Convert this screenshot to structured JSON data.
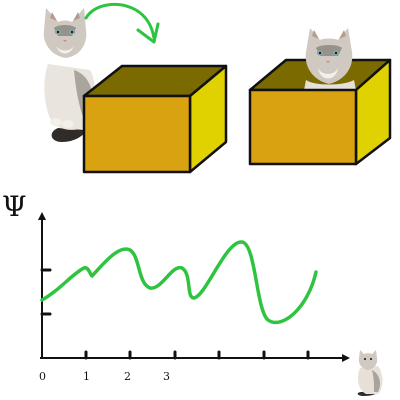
{
  "y_axis_symbol": "Ψ",
  "x_tick_labels": [
    "0",
    "1",
    "2",
    "3"
  ],
  "colors": {
    "box_front": "#d9a210",
    "box_top": "#7a6a00",
    "box_side": "#e0d200",
    "box_outline": "#111111",
    "curve": "#2fc43f",
    "arrow": "#2fc43f",
    "axis": "#111111",
    "cat_fur_light": "#efe9e2",
    "cat_fur_gray": "#9c9790",
    "cat_fur_dark": "#4d4a46",
    "cat_eye": "#7da8a6"
  },
  "icons": [
    "cat-sitting-icon",
    "cat-in-box-icon",
    "small-cat-icon",
    "curved-arrow-icon"
  ]
}
